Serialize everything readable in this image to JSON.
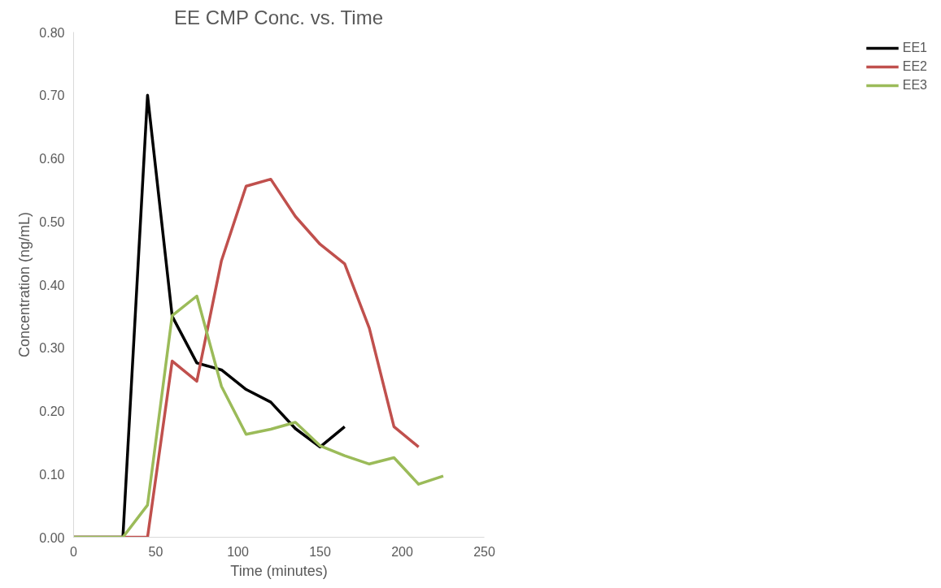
{
  "chart_data": {
    "type": "line",
    "title": "EE CMP Conc. vs. Time",
    "xlabel": "Time (minutes)",
    "ylabel": "Concentration (ng/mL)",
    "xlim": [
      0,
      250
    ],
    "xticks": [
      0,
      50,
      100,
      150,
      200,
      250
    ],
    "ylim": [
      0,
      0.8
    ],
    "yticks": [
      {
        "value": 0,
        "label": "0.00"
      },
      {
        "value": 0.1,
        "label": "0.10"
      },
      {
        "value": 0.2,
        "label": "0.20"
      },
      {
        "value": 0.3,
        "label": "0.30"
      },
      {
        "value": 0.4,
        "label": "0.40"
      },
      {
        "value": 0.5,
        "label": "0.50"
      },
      {
        "value": 0.6,
        "label": "0.60"
      },
      {
        "value": 0.7,
        "label": "0.70"
      },
      {
        "value": 0.8,
        "label": "0.80"
      }
    ],
    "grid": false,
    "legend": "right",
    "marker": "none",
    "line_style": "solid",
    "series": [
      {
        "name": "EE1",
        "color": "#000000",
        "x": [
          0,
          15,
          30,
          45,
          60,
          75,
          90,
          105,
          120,
          135,
          150,
          165
        ],
        "values": [
          0,
          0,
          0,
          0.7,
          0.35,
          0.276,
          0.265,
          0.234,
          0.214,
          0.172,
          0.143,
          0.175
        ]
      },
      {
        "name": "EE2",
        "color": "#c0504d",
        "x": [
          0,
          15,
          30,
          45,
          60,
          75,
          90,
          105,
          120,
          135,
          150,
          165,
          180,
          195,
          210
        ],
        "values": [
          0,
          0,
          0,
          0,
          0.279,
          0.247,
          0.438,
          0.556,
          0.567,
          0.508,
          0.464,
          0.433,
          0.331,
          0.175,
          0.143
        ]
      },
      {
        "name": "EE3",
        "color": "#9bbb59",
        "x": [
          0,
          15,
          30,
          45,
          60,
          75,
          90,
          105,
          120,
          135,
          150,
          165,
          180,
          195,
          210,
          225
        ],
        "values": [
          0,
          0,
          0,
          0.051,
          0.351,
          0.382,
          0.239,
          0.163,
          0.171,
          0.182,
          0.145,
          0.129,
          0.116,
          0.126,
          0.084,
          0.097
        ]
      }
    ]
  }
}
